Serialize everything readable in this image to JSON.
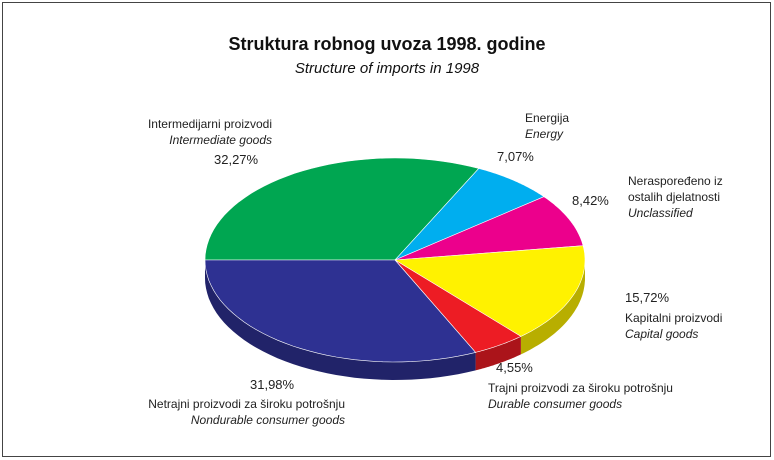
{
  "chart_data": {
    "type": "pie",
    "title": "Struktura robnog uvoza 1998. godine",
    "subtitle": "Structure of imports in 1998",
    "categories": [
      "Intermedijarni proizvodi",
      "Energija",
      "Neraspoređeno iz ostalih djelatnosti",
      "Kapitalni proizvodi",
      "Trajni proizvodi za široku potrošnju",
      "Netrajni proizvodi za široku potrošnju"
    ],
    "categories_en": [
      "Intermediate goods",
      "Energy",
      "Unclassified",
      "Capital goods",
      "Durable consumer goods",
      "Nondurable consumer goods"
    ],
    "values": [
      32.27,
      7.07,
      8.42,
      15.72,
      4.55,
      31.98
    ],
    "value_labels": [
      "32,27%",
      "7,07%",
      "8,42%",
      "15,72%",
      "4,55%",
      "31,98%"
    ],
    "colors": [
      "#00a651",
      "#00aeef",
      "#ec008c",
      "#fff200",
      "#ed1c24",
      "#2e3192"
    ]
  }
}
